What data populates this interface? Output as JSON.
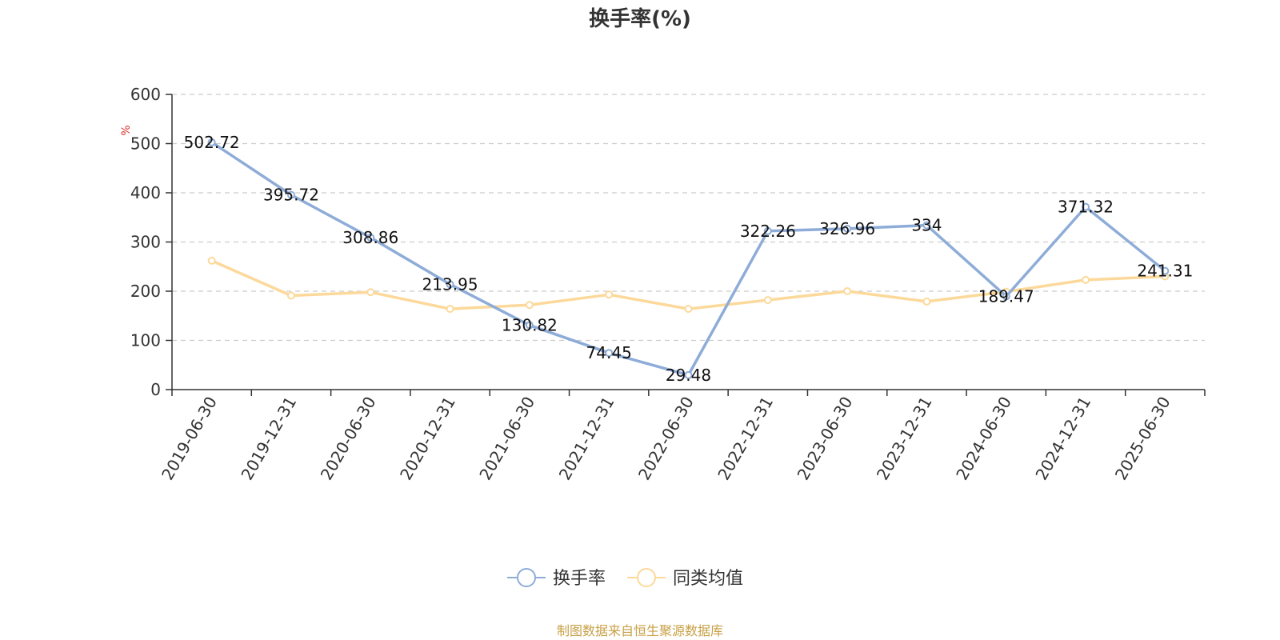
{
  "chart_data": {
    "type": "line",
    "title": "换手率(%)",
    "ylabel": "%",
    "xlabel": "",
    "ylim": [
      0,
      600
    ],
    "yticks": [
      0,
      100,
      200,
      300,
      400,
      500,
      600
    ],
    "grid": true,
    "legend_position": "bottom",
    "categories": [
      "2019-06-30",
      "2019-12-31",
      "2020-06-30",
      "2020-12-31",
      "2021-06-30",
      "2021-12-31",
      "2022-06-30",
      "2022-12-31",
      "2023-06-30",
      "2023-12-31",
      "2024-06-30",
      "2024-12-31",
      "2025-06-30"
    ],
    "series": [
      {
        "name": "换手率",
        "color": "#8eacd8",
        "values": [
          502.72,
          395.72,
          308.86,
          213.95,
          130.82,
          74.45,
          29.48,
          322.26,
          326.96,
          334,
          189.47,
          371.32,
          241.31
        ],
        "labels": [
          "502.72",
          "395.72",
          "308.86",
          "213.95",
          "130.82",
          "74.45",
          "29.48",
          "322.26",
          "326.96",
          "334",
          "189.47",
          "371.32",
          "241.31"
        ],
        "show_labels": true
      },
      {
        "name": "同类均值",
        "color": "#fcd99a",
        "values": [
          262,
          191,
          198,
          164,
          172,
          193,
          164,
          182,
          200,
          179,
          199,
          223,
          230
        ],
        "show_labels": false
      }
    ]
  },
  "source_text": "制图数据来自恒生聚源数据库",
  "colors": {
    "axis": "#333333",
    "grid": "#cccccc",
    "unit": "#e0302a",
    "source": "#c8a046"
  }
}
